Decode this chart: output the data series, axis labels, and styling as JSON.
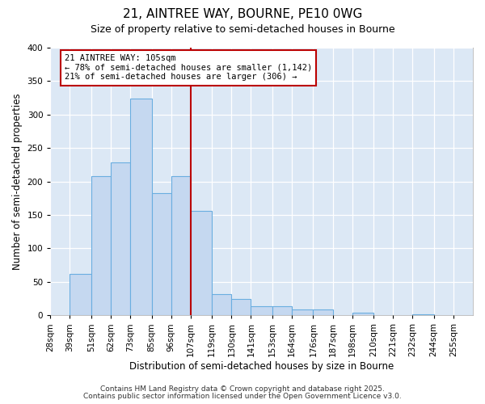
{
  "title": "21, AINTREE WAY, BOURNE, PE10 0WG",
  "subtitle": "Size of property relative to semi-detached houses in Bourne",
  "xlabel": "Distribution of semi-detached houses by size in Bourne",
  "ylabel": "Number of semi-detached properties",
  "bin_labels": [
    "28sqm",
    "39sqm",
    "51sqm",
    "62sqm",
    "73sqm",
    "85sqm",
    "96sqm",
    "107sqm",
    "119sqm",
    "130sqm",
    "141sqm",
    "153sqm",
    "164sqm",
    "176sqm",
    "187sqm",
    "198sqm",
    "210sqm",
    "221sqm",
    "232sqm",
    "244sqm",
    "255sqm"
  ],
  "counts": [
    0,
    62,
    208,
    229,
    324,
    183,
    208,
    156,
    32,
    24,
    14,
    14,
    9,
    9,
    0,
    4,
    0,
    0,
    2,
    0,
    0
  ],
  "bin_edges": [
    28,
    39,
    51,
    62,
    73,
    85,
    96,
    107,
    119,
    130,
    141,
    153,
    164,
    176,
    187,
    198,
    210,
    221,
    232,
    244,
    255,
    266
  ],
  "bar_color": "#c5d8f0",
  "bar_edge_color": "#6aaee0",
  "vline_x": 107,
  "vline_color": "#bb0000",
  "annotation_title": "21 AINTREE WAY: 105sqm",
  "annotation_line1": "← 78% of semi-detached houses are smaller (1,142)",
  "annotation_line2": "21% of semi-detached houses are larger (306) →",
  "annotation_box_edgecolor": "#bb0000",
  "ylim": [
    0,
    400
  ],
  "yticks": [
    0,
    50,
    100,
    150,
    200,
    250,
    300,
    350,
    400
  ],
  "footer1": "Contains HM Land Registry data © Crown copyright and database right 2025.",
  "footer2": "Contains public sector information licensed under the Open Government Licence v3.0.",
  "fig_bg_color": "#ffffff",
  "plot_bg_color": "#dce8f5",
  "title_fontsize": 11,
  "subtitle_fontsize": 9,
  "axis_label_fontsize": 8.5,
  "tick_fontsize": 7.5,
  "footer_fontsize": 6.5,
  "annotation_fontsize": 7.5
}
